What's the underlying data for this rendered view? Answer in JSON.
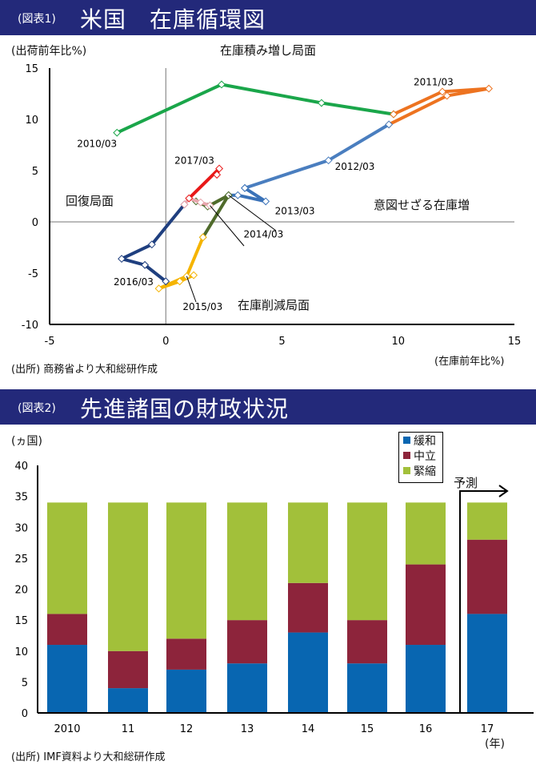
{
  "chart1": {
    "banner_prefix": "(図表1)",
    "banner_title": "米国　在庫循環図",
    "ylabel": "(出荷前年比%)",
    "xlabel": "(在庫前年比%)",
    "source": "(出所) 商務省より大和総研作成",
    "quadrants": {
      "top": "在庫積み増し局面",
      "left": "回復局面",
      "right": "意図せざる在庫増",
      "bottom": "在庫削減局面"
    },
    "chart_data": {
      "type": "scatter",
      "title": "米国　在庫循環図",
      "xlabel": "(在庫前年比%)",
      "ylabel": "(出荷前年比%)",
      "xlim": [
        -5,
        15
      ],
      "ylim": [
        -10,
        15
      ],
      "xticks": [
        -5,
        0,
        5,
        10,
        15
      ],
      "yticks": [
        -10,
        -5,
        0,
        5,
        10,
        15
      ],
      "series": [
        {
          "name": "2010",
          "color": "#1aa64a",
          "points": [
            [
              -2.1,
              8.7
            ],
            [
              2.4,
              13.4
            ],
            [
              6.7,
              11.6
            ],
            [
              9.8,
              10.5
            ]
          ]
        },
        {
          "name": "2011",
          "color": "#ed7320",
          "points": [
            [
              9.8,
              10.5
            ],
            [
              11.9,
              12.7
            ],
            [
              13.9,
              13.0
            ],
            [
              12.1,
              12.3
            ],
            [
              9.6,
              9.5
            ]
          ]
        },
        {
          "name": "2012",
          "color": "#4a7ebf",
          "points": [
            [
              9.6,
              9.5
            ],
            [
              7.0,
              6.0
            ],
            [
              3.4,
              3.3
            ]
          ]
        },
        {
          "name": "2013",
          "color": "#3a72b8",
          "points": [
            [
              3.4,
              3.3
            ],
            [
              4.3,
              2.0
            ],
            [
              3.1,
              2.6
            ],
            [
              2.7,
              2.6
            ]
          ]
        },
        {
          "name": "2014",
          "color": "#4f6b2b",
          "points": [
            [
              2.7,
              2.6
            ],
            [
              1.9,
              1.6
            ],
            [
              1.3,
              2.0
            ],
            [
              1.8,
              1.5
            ],
            [
              2.7,
              2.6
            ],
            [
              1.6,
              -1.5
            ]
          ]
        },
        {
          "name": "2015",
          "color": "#f5b400",
          "points": [
            [
              1.6,
              -1.5
            ],
            [
              0.9,
              -5.3
            ],
            [
              -0.3,
              -6.5
            ],
            [
              0.6,
              -5.8
            ],
            [
              1.2,
              -5.2
            ]
          ]
        },
        {
          "name": "2016",
          "color": "#1f3f7f",
          "points": [
            [
              0,
              -5.8
            ],
            [
              -0.9,
              -4.2
            ],
            [
              -1.9,
              -3.6
            ],
            [
              -0.6,
              -2.2
            ],
            [
              0.8,
              1.7
            ]
          ]
        },
        {
          "name": "2016b",
          "color": "#e8a6ad",
          "points": [
            [
              0.8,
              1.7
            ],
            [
              1.0,
              2.3
            ],
            [
              1.5,
              1.9
            ],
            [
              1.9,
              1.6
            ]
          ]
        },
        {
          "name": "2017",
          "color": "#e81818",
          "points": [
            [
              1.0,
              2.3
            ],
            [
              2.3,
              5.2
            ],
            [
              2.2,
              4.6
            ]
          ]
        }
      ],
      "annotations": [
        {
          "text": "2010/03",
          "x": -2.1,
          "y": 8.7
        },
        {
          "text": "2011/03",
          "x": 11.9,
          "y": 12.7
        },
        {
          "text": "2012/03",
          "x": 7.0,
          "y": 6.0
        },
        {
          "text": "2013/03",
          "x": 2.7,
          "y": 2.6
        },
        {
          "text": "2014/03",
          "x": 1.9,
          "y": 1.6
        },
        {
          "text": "2015/03",
          "x": 0.9,
          "y": -5.3
        },
        {
          "text": "2016/03",
          "x": -1.9,
          "y": -3.6
        },
        {
          "text": "2017/03",
          "x": 2.3,
          "y": 5.2
        }
      ]
    }
  },
  "chart2": {
    "banner_prefix": "(図表2)",
    "banner_title": "先進諸国の財政状況",
    "ylabel": "(ヵ国)",
    "xlabel_unit": "(年)",
    "source": "(出所) IMF資料より大和総研作成",
    "forecast_label": "予測",
    "chart_data": {
      "type": "bar",
      "stacked": true,
      "title": "先進諸国の財政状況",
      "ylabel": "(ヵ国)",
      "xlabel": "(年)",
      "ylim": [
        0,
        40
      ],
      "yticks": [
        0,
        5,
        10,
        15,
        20,
        25,
        30,
        35,
        40
      ],
      "categories": [
        "2010",
        "11",
        "12",
        "13",
        "14",
        "15",
        "16",
        "17"
      ],
      "legend_position": "top-right",
      "series": [
        {
          "name": "緩和",
          "color": "#0866b1",
          "values": [
            11,
            4,
            7,
            8,
            13,
            8,
            11,
            16
          ]
        },
        {
          "name": "中立",
          "color": "#8d243b",
          "values": [
            5,
            6,
            5,
            7,
            8,
            7,
            13,
            12
          ]
        },
        {
          "name": "緊縮",
          "color": "#a2c03a",
          "values": [
            18,
            24,
            22,
            19,
            13,
            19,
            10,
            6
          ]
        }
      ],
      "forecast_from": "17"
    }
  }
}
